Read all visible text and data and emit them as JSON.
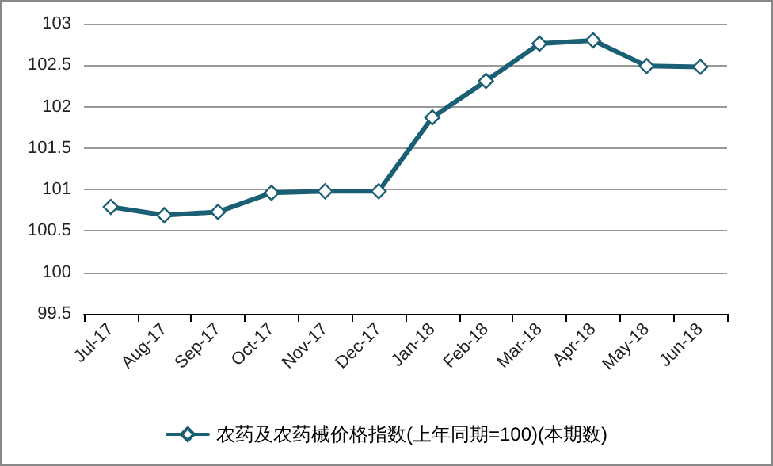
{
  "chart_data": {
    "type": "line",
    "categories": [
      "Jul-17",
      "Aug-17",
      "Sep-17",
      "Oct-17",
      "Nov-17",
      "Dec-17",
      "Jan-18",
      "Feb-18",
      "Mar-18",
      "Apr-18",
      "May-18",
      "Jun-18"
    ],
    "series": [
      {
        "name": "农药及农药械价格指数(上年同期=100)(本期数)",
        "color": "#1b5f74",
        "values": [
          100.79,
          100.69,
          100.73,
          100.96,
          100.98,
          100.98,
          101.87,
          102.31,
          102.76,
          102.8,
          102.49,
          102.48
        ]
      }
    ],
    "ylim": [
      99.5,
      103
    ],
    "yticks": [
      99.5,
      100,
      100.5,
      101,
      101.5,
      102,
      102.5,
      103
    ],
    "grid": "y",
    "legend": "bottom",
    "marker": "diamond",
    "line_style": "solid"
  }
}
